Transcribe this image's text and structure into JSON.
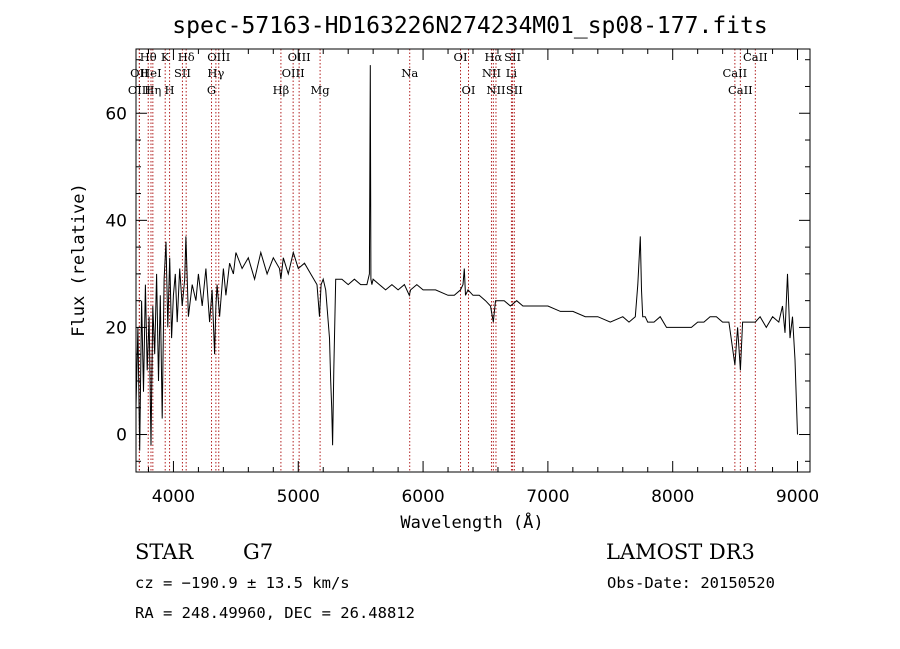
{
  "chart_data": {
    "type": "line",
    "title": "spec-57163-HD163226N274234M01_sp08-177.fits",
    "xlabel": "Wavelength (Å)",
    "ylabel": "Flux (relative)",
    "xlim": [
      3700,
      9100
    ],
    "ylim": [
      -7,
      72
    ],
    "x_ticks": [
      4000,
      5000,
      6000,
      7000,
      8000,
      9000
    ],
    "x_tick_labels": [
      "4000",
      "5000",
      "6000",
      "7000",
      "8000",
      "9000"
    ],
    "y_ticks": [
      0,
      20,
      40,
      60
    ],
    "y_tick_labels": [
      "0",
      "20",
      "40",
      "60"
    ],
    "series": [
      {
        "name": "flux",
        "x": [
          3700,
          3715,
          3730,
          3745,
          3760,
          3775,
          3790,
          3805,
          3820,
          3835,
          3850,
          3865,
          3880,
          3895,
          3910,
          3925,
          3940,
          3955,
          3970,
          3985,
          4000,
          4015,
          4030,
          4050,
          4070,
          4090,
          4100,
          4120,
          4150,
          4180,
          4200,
          4230,
          4260,
          4290,
          4310,
          4330,
          4340,
          4350,
          4370,
          4400,
          4420,
          4450,
          4480,
          4500,
          4550,
          4600,
          4650,
          4700,
          4750,
          4800,
          4850,
          4861,
          4880,
          4920,
          4960,
          5000,
          5050,
          5100,
          5150,
          5170,
          5183,
          5200,
          5220,
          5250,
          5260,
          5268,
          5275,
          5285,
          5300,
          5350,
          5400,
          5450,
          5500,
          5550,
          5570,
          5577,
          5582,
          5590,
          5600,
          5650,
          5700,
          5750,
          5800,
          5850,
          5890,
          5900,
          5950,
          6000,
          6100,
          6200,
          6250,
          6300,
          6320,
          6330,
          6340,
          6360,
          6400,
          6450,
          6500,
          6540,
          6563,
          6580,
          6600,
          6650,
          6700,
          6750,
          6800,
          6900,
          7000,
          7100,
          7200,
          7300,
          7400,
          7500,
          7600,
          7650,
          7700,
          7720,
          7740,
          7750,
          7760,
          7780,
          7800,
          7850,
          7900,
          7950,
          8000,
          8050,
          8100,
          8150,
          8200,
          8250,
          8300,
          8350,
          8400,
          8450,
          8498,
          8520,
          8542,
          8560,
          8600,
          8662,
          8700,
          8750,
          8800,
          8850,
          8880,
          8900,
          8920,
          8940,
          8960,
          8980,
          9000
        ],
        "y": [
          5,
          20,
          -3,
          25,
          8,
          28,
          12,
          22,
          -2,
          24,
          15,
          30,
          10,
          26,
          3,
          29,
          36,
          20,
          33,
          18,
          26,
          30,
          21,
          31,
          24,
          29,
          37,
          22,
          28,
          25,
          30,
          24,
          31,
          21,
          27,
          15,
          24,
          28,
          22,
          31,
          26,
          32,
          30,
          34,
          31,
          33,
          29,
          34,
          30,
          33,
          31,
          29,
          33,
          30,
          34,
          31,
          32,
          30,
          28,
          22,
          28,
          29,
          27,
          18,
          10,
          5,
          -2,
          12,
          29,
          29,
          28,
          29,
          28,
          28,
          30,
          69,
          29,
          28,
          29,
          28,
          27,
          28,
          27,
          28,
          26,
          27,
          28,
          27,
          27,
          26,
          26,
          27,
          28,
          31,
          26,
          27,
          26,
          26,
          25,
          24,
          21,
          25,
          25,
          25,
          24,
          25,
          24,
          24,
          24,
          23,
          23,
          22,
          22,
          21,
          22,
          21,
          22,
          28,
          37,
          27,
          22,
          22,
          21,
          21,
          22,
          20,
          20,
          20,
          20,
          20,
          21,
          21,
          22,
          22,
          21,
          21,
          13,
          20,
          12,
          21,
          21,
          21,
          22,
          20,
          22,
          21,
          24,
          19,
          30,
          18,
          22,
          14,
          0
        ]
      }
    ],
    "spectral_lines": [
      {
        "label": "Hθ",
        "x": 3798,
        "row": 0
      },
      {
        "label": "OII",
        "x": 3727,
        "row": 1
      },
      {
        "label": "OIII",
        "x": 3727,
        "row": 2
      },
      {
        "label": "HeI",
        "x": 3820,
        "row": 1
      },
      {
        "label": "Hη",
        "x": 3835,
        "row": 2
      },
      {
        "label": "K",
        "x": 3934,
        "row": 0
      },
      {
        "label": "H",
        "x": 3969,
        "row": 2
      },
      {
        "label": "Hδ",
        "x": 4102,
        "row": 0
      },
      {
        "label": "SII",
        "x": 4072,
        "row": 1
      },
      {
        "label": "OIII",
        "x": 4363,
        "row": 0
      },
      {
        "label": "Hγ",
        "x": 4340,
        "row": 1
      },
      {
        "label": "G",
        "x": 4305,
        "row": 2
      },
      {
        "label": "Hβ",
        "x": 4861,
        "row": 2
      },
      {
        "label": "OIII",
        "x": 5007,
        "row": 0
      },
      {
        "label": "OIII",
        "x": 4959,
        "row": 1
      },
      {
        "label": "Mg",
        "x": 5175,
        "row": 2
      },
      {
        "label": "Na",
        "x": 5893,
        "row": 1
      },
      {
        "label": "OI",
        "x": 6300,
        "row": 0
      },
      {
        "label": "OI",
        "x": 6364,
        "row": 2
      },
      {
        "label": "Hα",
        "x": 6563,
        "row": 0
      },
      {
        "label": "NII",
        "x": 6548,
        "row": 1
      },
      {
        "label": "NII",
        "x": 6584,
        "row": 2
      },
      {
        "label": "SII",
        "x": 6717,
        "row": 0
      },
      {
        "label": "Li",
        "x": 6708,
        "row": 1
      },
      {
        "label": "SII",
        "x": 6731,
        "row": 2
      },
      {
        "label": "CaII",
        "x": 8662,
        "row": 0
      },
      {
        "label": "CaII",
        "x": 8498,
        "row": 1
      },
      {
        "label": "CaII",
        "x": 8542,
        "row": 2
      }
    ],
    "line_color": "#b22222"
  },
  "info": {
    "object_class": "STAR",
    "subclass": "G7",
    "survey": "LAMOST DR3",
    "cz": "cz = −190.9 ± 13.5 km/s",
    "obs_date": "Obs-Date: 20150520",
    "coords": "RA = 248.49960, DEC =  26.48812"
  }
}
